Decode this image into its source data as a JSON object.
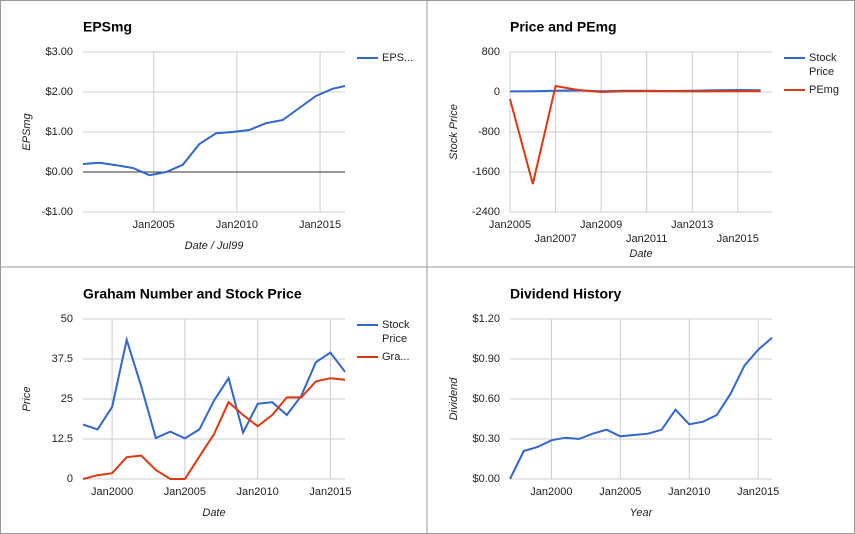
{
  "chart_data": [
    {
      "type": "line",
      "title": "EPSmg",
      "y_label": "EPSmg",
      "x_label": "Date / Jul99",
      "x": [
        2000.75,
        2001.75,
        2002.75,
        2003.75,
        2004.75,
        2005.75,
        2006.75,
        2007.75,
        2008.75,
        2009.75,
        2010.75,
        2011.75,
        2012.75,
        2013.75,
        2014.75,
        2015.75,
        2016.5
      ],
      "series": [
        {
          "name": "EPS...",
          "color": "#3366cc",
          "values": [
            0.2,
            0.23,
            0.17,
            0.1,
            -0.08,
            0.0,
            0.18,
            0.7,
            0.97,
            1.0,
            1.05,
            1.22,
            1.3,
            1.6,
            1.9,
            2.08,
            2.15
          ]
        }
      ],
      "xlim": [
        2000.75,
        2016.5
      ],
      "xticks": [
        {
          "value": 2005,
          "label": "Jan2005"
        },
        {
          "value": 2010,
          "label": "Jan2010"
        },
        {
          "value": 2015,
          "label": "Jan2015"
        }
      ],
      "ylim": [
        -1,
        3
      ],
      "yticks": [
        {
          "value": 3,
          "label": "$3.00"
        },
        {
          "value": 2,
          "label": "$2.00"
        },
        {
          "value": 1,
          "label": "$1.00"
        },
        {
          "value": 0,
          "label": "$0.00"
        },
        {
          "value": -1,
          "label": "-$1.00"
        }
      ],
      "grid": true,
      "zero_line": true,
      "legend": "right"
    },
    {
      "type": "line",
      "title": "Price and PEmg",
      "y_label": "Stock Price",
      "x_label": "Date",
      "x": [
        2005,
        2006,
        2007,
        2008,
        2009,
        2010,
        2011,
        2012,
        2013,
        2014,
        2015,
        2016
      ],
      "series": [
        {
          "name": "Stock Price",
          "color": "#3366cc",
          "values": [
            12.7,
            15.5,
            24.5,
            31.5,
            14.5,
            23.5,
            24,
            20,
            26,
            36.5,
            39.5,
            33.5
          ]
        },
        {
          "name": "PEmg",
          "color": "#dc3912",
          "values": [
            -140,
            -1840,
            120,
            40,
            0,
            15,
            18,
            15,
            12,
            14,
            16,
            18
          ]
        }
      ],
      "xlim": [
        2005,
        2016.5
      ],
      "xticks": [
        {
          "value": 2005,
          "label": "Jan2005"
        },
        {
          "value": 2007,
          "label": "Jan2007"
        },
        {
          "value": 2009,
          "label": "Jan2009"
        },
        {
          "value": 2011,
          "label": "Jan2011"
        },
        {
          "value": 2013,
          "label": "Jan2013"
        },
        {
          "value": 2015,
          "label": "Jan2015"
        }
      ],
      "ylim": [
        -2400,
        800
      ],
      "yticks": [
        800,
        0,
        -800,
        -1600,
        -2400
      ],
      "grid": true,
      "staggered_xticks": true,
      "legend": "right"
    },
    {
      "type": "line",
      "title": "Graham Number and Stock Price",
      "y_label": "Price",
      "x_label": "Date",
      "x": [
        1998,
        1999,
        2000,
        2001,
        2002,
        2003,
        2004,
        2005,
        2006,
        2007,
        2008,
        2009,
        2010,
        2011,
        2012,
        2013,
        2014,
        2015,
        2016
      ],
      "series": [
        {
          "name": "Stock Price",
          "color": "#3366cc",
          "values": [
            17,
            15.5,
            22.5,
            43.5,
            29,
            12.8,
            14.8,
            12.7,
            15.5,
            24.5,
            31.5,
            14.5,
            23.5,
            24,
            20,
            26,
            36.5,
            39.5,
            33.5
          ]
        },
        {
          "name": "Gra...",
          "color": "#dc3912",
          "values": [
            0,
            1.2,
            1.8,
            6.8,
            7.3,
            2.8,
            0,
            0,
            7,
            14,
            24,
            20,
            16.5,
            20,
            25.5,
            25.5,
            30.5,
            31.5,
            31
          ]
        }
      ],
      "xlim": [
        1998,
        2016
      ],
      "xticks": [
        {
          "value": 2000,
          "label": "Jan2000"
        },
        {
          "value": 2005,
          "label": "Jan2005"
        },
        {
          "value": 2010,
          "label": "Jan2010"
        },
        {
          "value": 2015,
          "label": "Jan2015"
        }
      ],
      "ylim": [
        0,
        50
      ],
      "yticks": [
        50,
        37.5,
        25,
        12.5,
        0
      ],
      "grid": true,
      "legend": "right"
    },
    {
      "type": "line",
      "title": "Dividend History",
      "y_label": "Dividend",
      "x_label": "Year",
      "x": [
        1997,
        1998,
        1999,
        2000,
        2001,
        2002,
        2003,
        2004,
        2005,
        2006,
        2007,
        2008,
        2009,
        2010,
        2011,
        2012,
        2013,
        2014,
        2015,
        2016
      ],
      "series": [
        {
          "name": "Dividend",
          "color": "#3366cc",
          "values": [
            0.0,
            0.21,
            0.24,
            0.29,
            0.31,
            0.3,
            0.34,
            0.37,
            0.32,
            0.33,
            0.34,
            0.37,
            0.52,
            0.41,
            0.43,
            0.48,
            0.64,
            0.85,
            0.97,
            1.06
          ]
        }
      ],
      "xlim": [
        1997,
        2016
      ],
      "xticks": [
        {
          "value": 2000,
          "label": "Jan2000"
        },
        {
          "value": 2005,
          "label": "Jan2005"
        },
        {
          "value": 2010,
          "label": "Jan2010"
        },
        {
          "value": 2015,
          "label": "Jan2015"
        }
      ],
      "ylim": [
        0,
        1.2
      ],
      "yticks": [
        {
          "value": 1.2,
          "label": "$1.20"
        },
        {
          "value": 0.9,
          "label": "$0.90"
        },
        {
          "value": 0.6,
          "label": "$0.60"
        },
        {
          "value": 0.3,
          "label": "$0.30"
        },
        {
          "value": 0,
          "label": "$0.00"
        }
      ],
      "grid": true,
      "legend": "none"
    }
  ]
}
